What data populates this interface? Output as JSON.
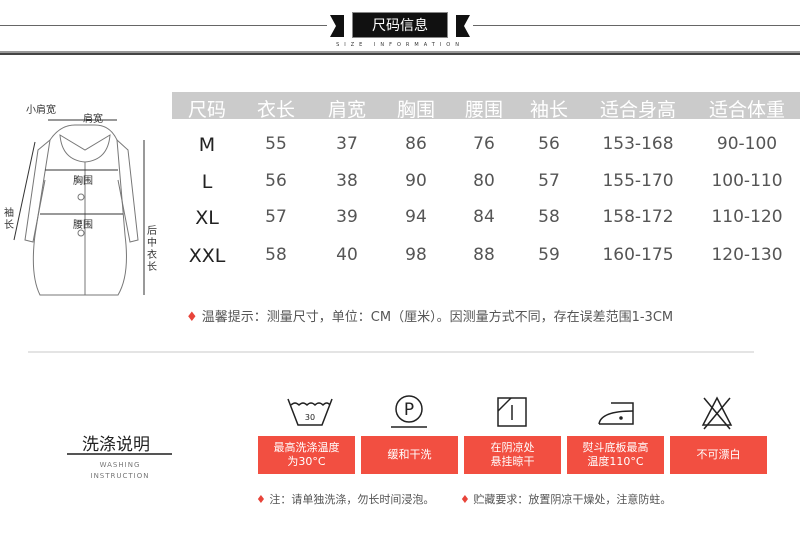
{
  "header": {
    "title": "尺码信息",
    "subtitle": "SIZE INFORMATION"
  },
  "diagram": {
    "labels": {
      "small_shoulder": "小肩宽",
      "shoulder": "肩宽",
      "chest": "胸围",
      "waist": "腰围",
      "sleeve": "袖长",
      "back_length": "后中衣长"
    }
  },
  "table": {
    "columns": [
      "尺码",
      "衣长",
      "肩宽",
      "胸围",
      "腰围",
      "袖长",
      "适合身高",
      "适合体重"
    ],
    "rows": [
      [
        "M",
        "55",
        "37",
        "86",
        "76",
        "56",
        "153-168",
        "90-100"
      ],
      [
        "L",
        "56",
        "38",
        "90",
        "80",
        "57",
        "155-170",
        "100-110"
      ],
      [
        "XL",
        "57",
        "39",
        "94",
        "84",
        "58",
        "158-172",
        "110-120"
      ],
      [
        "XXL",
        "58",
        "40",
        "98",
        "88",
        "59",
        "160-175",
        "120-130"
      ]
    ]
  },
  "tip": "温馨提示：测量尺寸，单位：CM（厘米）。因测量方式不同，存在误差范围1-3CM",
  "washing": {
    "title": "洗涤说明",
    "subtitle1": "WASHING",
    "subtitle2": "INSTRUCTION",
    "items": [
      {
        "icon": "wash-30-icon",
        "label": "最高洗涤温度\n为30°C",
        "icon_text": "30"
      },
      {
        "icon": "dry-clean-p-icon",
        "label": "缓和干洗",
        "icon_text": "P"
      },
      {
        "icon": "shade-dry-hang-icon",
        "label": "在阴凉处\n悬挂晾干"
      },
      {
        "icon": "iron-low-icon",
        "label": "熨斗底板最高\n温度110°C"
      },
      {
        "icon": "no-bleach-icon",
        "label": "不可漂白"
      }
    ],
    "note1": "注：请单独洗涤，勿长时间浸泡。",
    "note2": "贮藏要求：放置阴凉干燥处，注意防蛀。"
  },
  "colors": {
    "accent": "#f24f41",
    "header_band": "#cbcbcb"
  }
}
